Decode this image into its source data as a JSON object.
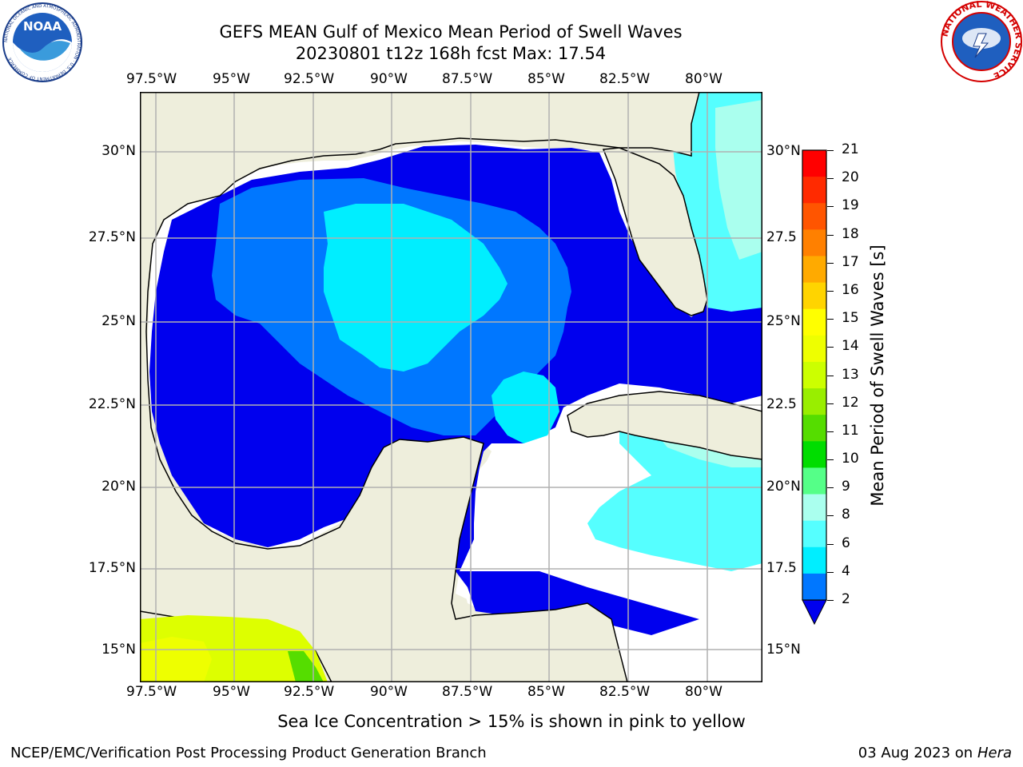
{
  "title_line1": "GEFS MEAN Gulf of Mexico Mean Period of Swell Waves",
  "title_line2": "20230801 t12z 168h fcst   Max: 17.54",
  "lon_labels": [
    "97.5°W",
    "95°W",
    "92.5°W",
    "90°W",
    "87.5°W",
    "85°W",
    "82.5°W",
    "80°W"
  ],
  "lat_labels_left": [
    "30°N",
    "27.5°N",
    "25°N",
    "22.5°N",
    "20°N",
    "17.5°N",
    "15°N"
  ],
  "lat_labels_right": [
    "30°N",
    "27.5",
    "25°N",
    "22.5",
    "20°N",
    "17.5",
    "15°N"
  ],
  "colorbar": {
    "label": "Mean Period of Swell Waves [s]",
    "ticks": [
      "21",
      "20",
      "19",
      "18",
      "17",
      "16",
      "15",
      "14",
      "13",
      "12",
      "11",
      "10",
      "9",
      "8",
      "6",
      "4",
      "2"
    ],
    "colors_top_to_bottom": [
      "#ff0000",
      "#ff2a00",
      "#ff5500",
      "#ff8000",
      "#ffaa00",
      "#ffd400",
      "#ffff00",
      "#eeff00",
      "#ccff00",
      "#99ee00",
      "#55dd00",
      "#00dd00",
      "#55ff88",
      "#aaffee",
      "#55ffff",
      "#00eeff",
      "#0077ff"
    ],
    "extend_color": "#0000ee"
  },
  "note": "Sea Ice Concentration > 15% is shown in pink to yellow",
  "footer_left": "NCEP/EMC/Verification Post Processing Product Generation Branch",
  "footer_date": "03 Aug 2023 on",
  "footer_host": "Hera",
  "logos": {
    "noaa_text": "NOAA",
    "noaa_ring": "NATIONAL OCEANIC AND ATMOSPHERIC ADMINISTRATION · U.S. DEPARTMENT OF COMMERCE",
    "nws_ring": "NATIONAL WEATHER SERVICE"
  },
  "colors": {
    "land": "#eeeedc",
    "ocean_low": "#0000ee",
    "ocean_mid": "#0077ff",
    "ocean_high": "#00eeff",
    "ocean_light": "#55ffff",
    "grid": "#b0b0b0"
  }
}
